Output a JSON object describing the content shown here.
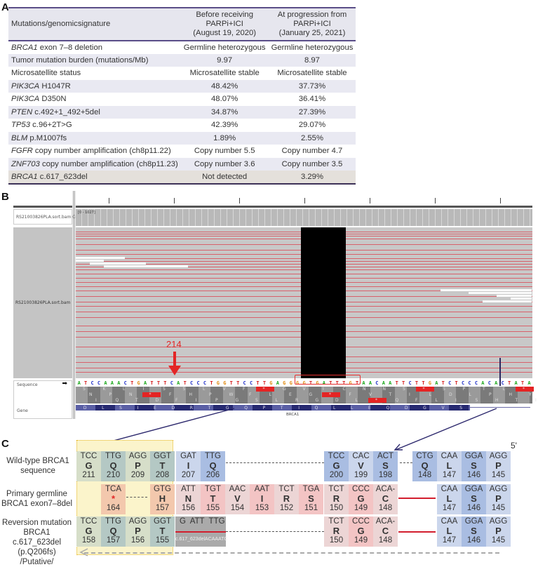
{
  "panels": {
    "a": "A",
    "b": "B",
    "c": "C"
  },
  "tableA": {
    "headers": [
      "Mutations/genomicsignature",
      "Before receiving PARPi+ICI",
      "(August 19, 2020)",
      "At progression from PARPi+ICI",
      "(January 25, 2021)"
    ],
    "rows": [
      {
        "gene": "BRCA1",
        "desc": " exon 7–8 deletion",
        "before": "Germline heterozygous",
        "after": "Germline heterozygous"
      },
      {
        "gene": "",
        "desc": "Tumor mutation burden (mutations/Mb)",
        "before": "9.97",
        "after": "8.97"
      },
      {
        "gene": "",
        "desc": "Microsatellite status",
        "before": "Microsatellite stable",
        "after": "Microsatellite stable"
      },
      {
        "gene": "PIK3CA",
        "desc": " H1047R",
        "before": "48.42%",
        "after": "37.73%"
      },
      {
        "gene": "PIK3CA",
        "desc": " D350N",
        "before": "48.07%",
        "after": "36.41%"
      },
      {
        "gene": "PTEN",
        "desc": " c.492+1_492+5del",
        "before": "34.87%",
        "after": "27.39%"
      },
      {
        "gene": "TP53",
        "desc": " c.96+2T>G",
        "before": "42.39%",
        "after": "29.07%"
      },
      {
        "gene": "BLM",
        "desc": " p.M1007fs",
        "before": "1.89%",
        "after": "2.55%"
      },
      {
        "gene": "FGFR",
        "desc": " copy number amplification (ch8p11.22)",
        "before": "Copy number 5.5",
        "after": "Copy number 4.7"
      },
      {
        "gene": "ZNF703",
        "desc": " copy number amplification (ch8p11.23)",
        "before": "Copy number 3.6",
        "after": "Copy number 3.5"
      },
      {
        "gene": "BRCA1",
        "desc": " c.617_623del",
        "before": "Not detected",
        "after": "3.29%"
      }
    ]
  },
  "igv": {
    "coverage_label": "RS21003826PLA.sort.bam Coverage",
    "coverage_range": "[0 - 1027]",
    "reads_label": "RS21003826PLA.sort.bam",
    "sequence_label": "Sequence",
    "gene_label": "Gene",
    "gene_name": "BRCA1",
    "position_marker": "214",
    "sequence": "ATCCAAACTGATTTCATCCCTGGTTCCTTGAGGGGTGATTTGTAACAATTCTTGATCTCCCACACTATA",
    "gene_aa": [
      "D",
      "L",
      "S",
      "I",
      "E",
      "D",
      "R",
      "T",
      "G",
      "Q",
      "P",
      "T",
      "I",
      "Q",
      "L",
      "L",
      "E",
      "Q",
      "D",
      "G",
      "V",
      "S"
    ],
    "frame1": [
      "S",
      "K",
      "L",
      "I",
      "S",
      "S",
      "L",
      "V",
      "F",
      "*",
      "G",
      "V",
      "I",
      "C",
      "N",
      "N",
      "S",
      "*",
      "S",
      "P",
      "T",
      "L",
      "*"
    ],
    "frame2": [
      "N",
      "P",
      "N",
      "*",
      "F",
      "H",
      "P",
      "W",
      "F",
      "L",
      "E",
      "G",
      "*",
      "F",
      "V",
      "T",
      "I",
      "L",
      "D",
      "L",
      "P",
      "H",
      "Y"
    ],
    "frame3": [
      "I",
      "Q",
      "T",
      "D",
      "F",
      "I",
      "P",
      "G",
      "S",
      "L",
      "R",
      "G",
      "D",
      "L",
      "*",
      "Q",
      "F",
      "L",
      "I",
      "S",
      "H",
      "T",
      "I"
    ]
  },
  "panelC": {
    "five_prime": "5'",
    "rows": [
      {
        "label": [
          "Wild-type BRCA1",
          "sequence"
        ]
      },
      {
        "label": [
          "Primary germline",
          "BRCA1 exon7–8del"
        ]
      },
      {
        "label": [
          "Reversion mutation",
          "BRCA1 c.617_623del",
          "(p.Q206fs)",
          "/Putative/"
        ]
      }
    ],
    "wildtype": [
      {
        "nt": "TCC",
        "aa": "G",
        "num": "211"
      },
      {
        "nt": "TTG",
        "aa": "Q",
        "num": "210"
      },
      {
        "nt": "AGG",
        "aa": "P",
        "num": "209"
      },
      {
        "nt": "GGT",
        "aa": "T",
        "num": "208"
      },
      {
        "nt": "GAT",
        "aa": "I",
        "num": "207"
      },
      {
        "nt": "TTG",
        "aa": "Q",
        "num": "206"
      },
      {
        "nt": "TCC",
        "aa": "G",
        "num": "200"
      },
      {
        "nt": "CAC",
        "aa": "V",
        "num": "199"
      },
      {
        "nt": "ACT",
        "aa": "S",
        "num": "198"
      },
      {
        "nt": "CTG",
        "aa": "Q",
        "num": "148"
      },
      {
        "nt": "CAA",
        "aa": "L",
        "num": "147"
      },
      {
        "nt": "GGA",
        "aa": "S",
        "num": "146"
      },
      {
        "nt": "AGG",
        "aa": "P",
        "num": "145"
      }
    ],
    "germline": [
      {
        "nt": "TCA",
        "aa": "*",
        "num": "164"
      },
      {
        "nt": "GTG",
        "aa": "H",
        "num": "157"
      },
      {
        "nt": "ATT",
        "aa": "N",
        "num": "156"
      },
      {
        "nt": "TGT",
        "aa": "T",
        "num": "155"
      },
      {
        "nt": "AAC",
        "aa": "V",
        "num": "154"
      },
      {
        "nt": "AAT",
        "aa": "I",
        "num": "153"
      },
      {
        "nt": "TCT",
        "aa": "R",
        "num": "152"
      },
      {
        "nt": "TGA",
        "aa": "S",
        "num": "151"
      },
      {
        "nt": "TCT",
        "aa": "R",
        "num": "150"
      },
      {
        "nt": "CCC",
        "aa": "G",
        "num": "149"
      },
      {
        "nt": "ACA-",
        "aa": "C",
        "num": "148"
      },
      {
        "nt": "CAA",
        "aa": "L",
        "num": "147"
      },
      {
        "nt": "GGA",
        "aa": "S",
        "num": "146"
      },
      {
        "nt": "AGG",
        "aa": "P",
        "num": "145"
      }
    ],
    "reversion": [
      {
        "nt": "TCC",
        "aa": "G",
        "num": "158"
      },
      {
        "nt": "TTG",
        "aa": "Q",
        "num": "157"
      },
      {
        "nt": "AGG",
        "aa": "P",
        "num": "156"
      },
      {
        "nt": "GGT",
        "aa": "T",
        "num": "155"
      },
      {
        "nt": "TCT",
        "aa": "R",
        "num": "150"
      },
      {
        "nt": "CCC",
        "aa": "G",
        "num": "149"
      },
      {
        "nt": "ACA-",
        "aa": "C",
        "num": "148"
      },
      {
        "nt": "CAA",
        "aa": "L",
        "num": "147"
      },
      {
        "nt": "GGA",
        "aa": "S",
        "num": "146"
      },
      {
        "nt": "AGG",
        "aa": "P",
        "num": "145"
      }
    ],
    "reversion_gray_text": "G  ATT  TTG",
    "deletion_label": "c.617_623delACAAATC"
  }
}
